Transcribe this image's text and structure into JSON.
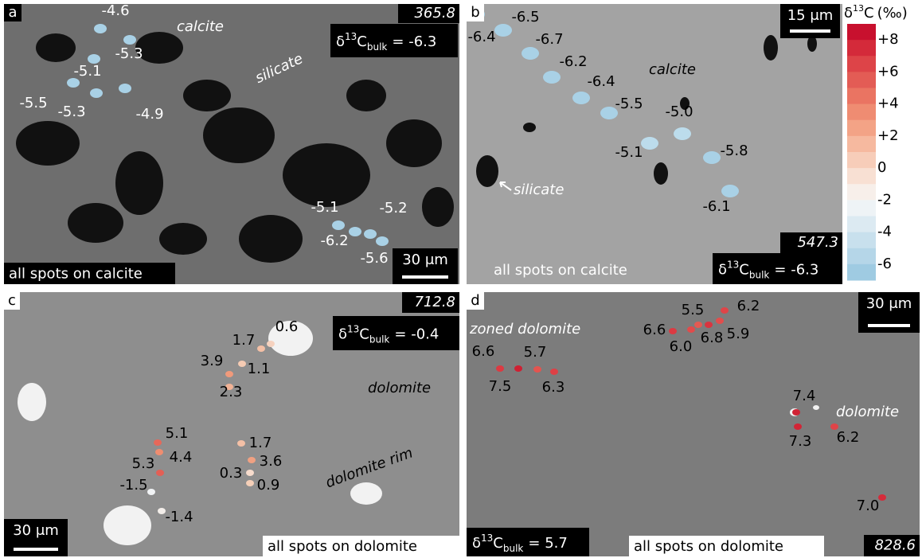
{
  "panels": [
    {
      "label": "a",
      "depth": "365.8",
      "bulk": {
        "symbol": "δ",
        "isotope": "13",
        "element": "C",
        "subscript": "bulk",
        "value": "= -6.3"
      },
      "minerals": [
        "calcite",
        "silicate"
      ],
      "scale_bar": "30 μm",
      "footer": "all spots on calcite",
      "spots": [
        {
          "value": "-4.6",
          "color": "#a9d1e6"
        },
        {
          "value": "-5.3",
          "color": "#a9d1e6"
        },
        {
          "value": "-5.1",
          "color": "#a9d1e6"
        },
        {
          "value": "-5.5",
          "color": "#a9d1e6"
        },
        {
          "value": "-5.3",
          "color": "#a9d1e6"
        },
        {
          "value": "-4.9",
          "color": "#a9d1e6"
        },
        {
          "value": "-5.1",
          "color": "#a9d1e6"
        },
        {
          "value": "-5.2",
          "color": "#a9d1e6"
        },
        {
          "value": "-6.2",
          "color": "#a9d1e6"
        },
        {
          "value": "-5.6",
          "color": "#a9d1e6"
        }
      ]
    },
    {
      "label": "b",
      "depth": "547.3",
      "bulk": {
        "symbol": "δ",
        "isotope": "13",
        "element": "C",
        "subscript": "bulk",
        "value": "= -6.3"
      },
      "minerals": [
        "calcite",
        "silicate"
      ],
      "scale_bar": "15 μm",
      "footer": "all spots on calcite",
      "spots": [
        {
          "value": "-6.5",
          "color": "#a9d1e6"
        },
        {
          "value": "-6.4",
          "color": "#a9d1e6"
        },
        {
          "value": "-6.7",
          "color": "#a9d1e6"
        },
        {
          "value": "-6.2",
          "color": "#a9d1e6"
        },
        {
          "value": "-6.4",
          "color": "#a9d1e6"
        },
        {
          "value": "-5.5",
          "color": "#a9d1e6"
        },
        {
          "value": "-5.0",
          "color": "#bcdcec"
        },
        {
          "value": "-5.1",
          "color": "#bcdcec"
        },
        {
          "value": "-5.8",
          "color": "#a9d1e6"
        },
        {
          "value": "-6.1",
          "color": "#a9d1e6"
        }
      ]
    },
    {
      "label": "c",
      "depth": "712.8",
      "bulk": {
        "symbol": "δ",
        "isotope": "13",
        "element": "C",
        "subscript": "bulk",
        "value": "= -0.4"
      },
      "minerals": [
        "dolomite",
        "dolomite rim"
      ],
      "scale_bar": "30 μm",
      "footer": "all spots on dolomite",
      "spots": [
        {
          "value": "0.6",
          "color": "#f6d2bf"
        },
        {
          "value": "1.7",
          "color": "#f4c0a6"
        },
        {
          "value": "1.1",
          "color": "#f5cbb3"
        },
        {
          "value": "3.9",
          "color": "#f09a7b"
        },
        {
          "value": "2.3",
          "color": "#f2b396"
        },
        {
          "value": "5.1",
          "color": "#e6685a"
        },
        {
          "value": "4.4",
          "color": "#ef8d70"
        },
        {
          "value": "5.3",
          "color": "#e35f55"
        },
        {
          "value": "-1.5",
          "color": "#f1f3f5"
        },
        {
          "value": "-1.4",
          "color": "#f3eeea"
        },
        {
          "value": "1.7",
          "color": "#f4c0a6"
        },
        {
          "value": "3.6",
          "color": "#f0a182"
        },
        {
          "value": "0.3",
          "color": "#f7dccd"
        },
        {
          "value": "0.9",
          "color": "#f5cfb8"
        }
      ]
    },
    {
      "label": "d",
      "depth": "828.6",
      "bulk": {
        "symbol": "δ",
        "isotope": "13",
        "element": "C",
        "subscript": "bulk",
        "value": "= 5.7"
      },
      "minerals": [
        "zoned dolomite",
        "dolomite"
      ],
      "scale_bar": "30 μm",
      "footer": "all spots on dolomite",
      "spots": [
        {
          "value": "6.6",
          "color": "#dc3a42"
        },
        {
          "value": "7.5",
          "color": "#cf1f32"
        },
        {
          "value": "5.7",
          "color": "#e4544f"
        },
        {
          "value": "6.3",
          "color": "#de4046"
        },
        {
          "value": "6.6",
          "color": "#dc3a42"
        },
        {
          "value": "6.0",
          "color": "#e14b4b"
        },
        {
          "value": "5.5",
          "color": "#e55a52"
        },
        {
          "value": "6.8",
          "color": "#d9343f"
        },
        {
          "value": "5.9",
          "color": "#e24d4c"
        },
        {
          "value": "6.2",
          "color": "#df4448"
        },
        {
          "value": "7.4",
          "color": "#d02234"
        },
        {
          "value": "7.3",
          "color": "#d22536"
        },
        {
          "value": "6.2",
          "color": "#df4448"
        },
        {
          "value": "7.0",
          "color": "#d52b3a"
        }
      ]
    }
  ],
  "colorbar": {
    "symbol": "δ",
    "isotope": "13",
    "element": "C",
    "unit": "(‰)",
    "ticks": [
      "+8",
      "+6",
      "+4",
      "+2",
      "0",
      "-2",
      "-4",
      "-6"
    ],
    "colors": [
      "#c8102e",
      "#d42a3a",
      "#dd4448",
      "#e35c55",
      "#ea7462",
      "#ef8c72",
      "#f3a386",
      "#f6b99f",
      "#f7cdb9",
      "#f8e0d3",
      "#f7efea",
      "#eef3f6",
      "#dceaf2",
      "#c8e0ed",
      "#b5d6e8",
      "#9fcbe2"
    ]
  }
}
